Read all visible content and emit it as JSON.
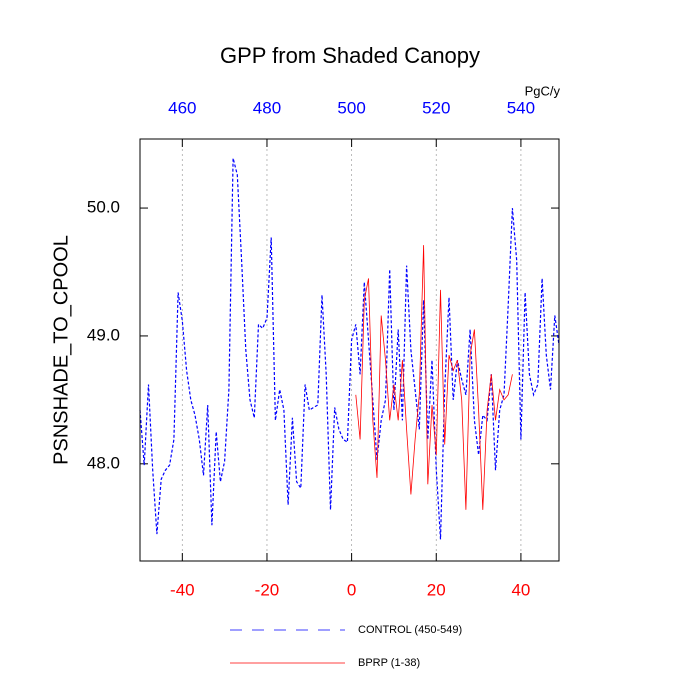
{
  "chart_data": {
    "type": "line",
    "title": "GPP from Shaded Canopy",
    "ylabel": "PSNSHADE_TO_CPOOL",
    "x2label": "PgC/y",
    "xlim": [
      -50,
      49
    ],
    "xticks": [
      -40,
      -20,
      0,
      20,
      40
    ],
    "x2lim": [
      450,
      549
    ],
    "x2ticks": [
      460,
      480,
      500,
      520,
      540
    ],
    "ylim": [
      47.24,
      50.54
    ],
    "yticks": [
      {
        "value": 48,
        "label": "48.0"
      },
      {
        "value": 49,
        "label": "49.0"
      },
      {
        "value": 50,
        "label": "50.0"
      }
    ],
    "grid": true,
    "series": [
      {
        "name": "CONTROL (450-549)",
        "color": "#0000ff",
        "dash": true,
        "x": [
          -50,
          -49,
          -48,
          -47,
          -46,
          -45,
          -44,
          -43,
          -42,
          -41,
          -40,
          -39,
          -38,
          -37,
          -36,
          -35,
          -34,
          -33,
          -32,
          -31,
          -30,
          -29,
          -28,
          -27,
          -26,
          -25,
          -24,
          -23,
          -22,
          -21,
          -20,
          -19,
          -18,
          -17,
          -16,
          -15,
          -14,
          -13,
          -12,
          -11,
          -10,
          -9,
          -8,
          -7,
          -6,
          -5,
          -4,
          -3,
          -2,
          -1,
          0,
          1,
          2,
          3,
          4,
          5,
          6,
          7,
          8,
          9,
          10,
          11,
          12,
          13,
          14,
          15,
          16,
          17,
          18,
          19,
          20,
          21,
          22,
          23,
          24,
          25,
          26,
          27,
          28,
          29,
          30,
          31,
          32,
          33,
          34,
          35,
          36,
          37,
          38,
          39,
          40,
          41,
          42,
          43,
          44,
          45,
          46,
          47,
          48,
          49
        ],
        "values": [
          48.42,
          47.99,
          48.62,
          47.95,
          47.45,
          47.88,
          47.95,
          47.99,
          48.19,
          49.34,
          49.12,
          48.73,
          48.5,
          48.38,
          48.19,
          47.91,
          48.46,
          47.52,
          48.25,
          47.86,
          48.02,
          48.58,
          50.39,
          50.26,
          49.59,
          48.89,
          48.5,
          48.36,
          49.09,
          49.06,
          49.14,
          49.77,
          48.34,
          48.58,
          48.42,
          47.68,
          48.36,
          47.86,
          47.81,
          48.62,
          48.42,
          48.44,
          48.46,
          49.32,
          48.7,
          47.64,
          48.44,
          48.27,
          48.19,
          48.17,
          48.97,
          49.09,
          48.7,
          49.42,
          48.97,
          48.5,
          48.03,
          48.34,
          48.5,
          49.52,
          48.42,
          49.05,
          48.34,
          49.55,
          48.89,
          48.58,
          48.27,
          49.28,
          48.19,
          48.81,
          47.95,
          47.41,
          48.58,
          49.3,
          48.5,
          48.81,
          48.66,
          48.54,
          49.05,
          48.34,
          48.07,
          48.38,
          48.34,
          48.7,
          47.95,
          48.42,
          48.54,
          49.24,
          50.0,
          49.59,
          48.19,
          49.34,
          48.7,
          48.54,
          48.62,
          49.45,
          48.85,
          48.58,
          49.16,
          48.93
        ]
      },
      {
        "name": "BPRP (1-38)",
        "color": "#ff0000",
        "dash": false,
        "x": [
          1,
          2,
          3,
          4,
          5,
          6,
          7,
          8,
          9,
          10,
          11,
          12,
          13,
          14,
          15,
          16,
          17,
          18,
          19,
          20,
          21,
          22,
          23,
          24,
          25,
          26,
          27,
          28,
          29,
          30,
          31,
          32,
          33,
          34,
          35,
          36,
          37,
          38
        ],
        "values": [
          48.54,
          48.19,
          49.28,
          49.45,
          48.34,
          47.89,
          49.16,
          48.81,
          48.34,
          48.62,
          48.34,
          48.81,
          48.27,
          47.76,
          48.19,
          48.54,
          49.71,
          47.84,
          48.46,
          48.07,
          49.36,
          48.15,
          48.85,
          48.73,
          48.81,
          48.5,
          47.64,
          48.85,
          49.05,
          48.42,
          47.64,
          48.42,
          48.7,
          48.34,
          48.58,
          48.5,
          48.54,
          48.7
        ]
      }
    ]
  }
}
